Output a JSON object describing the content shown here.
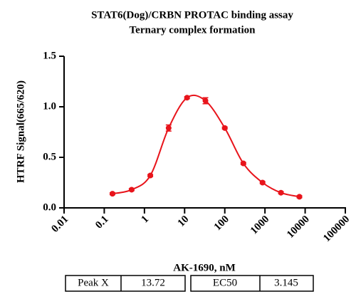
{
  "chart_data": {
    "type": "scatter",
    "title": "STAT6(Dog)/CRBN PROTAC binding assay",
    "subtitle": "Ternary complex formation",
    "x_label": "AK-1690, nM",
    "y_label": "HTRF Signal(665/620)",
    "x_log": true,
    "xlim": [
      0.01,
      100000
    ],
    "xticks": [
      0.01,
      0.1,
      1,
      10,
      100,
      1000,
      10000,
      100000
    ],
    "ylim": [
      0,
      1.5
    ],
    "yticks": [
      {
        "value": 0,
        "label": "0.0"
      },
      {
        "value": 0.5,
        "label": "0.5"
      },
      {
        "value": 1,
        "label": "1.0"
      },
      {
        "value": 1.5,
        "label": "1.5"
      }
    ],
    "series": [
      {
        "color": "#e8141b",
        "x": [
          0.16,
          0.48,
          1.4,
          4,
          11.5,
          33,
          100,
          290,
          870,
          2500,
          7200
        ],
        "values": [
          0.14,
          0.18,
          0.32,
          0.79,
          1.09,
          1.06,
          0.79,
          0.44,
          0.25,
          0.15,
          0.11
        ],
        "errors": [
          0.01,
          0.01,
          0.01,
          0.03,
          0.01,
          0.03,
          0.01,
          0.01,
          0.01,
          0.01,
          0.01
        ]
      }
    ]
  },
  "table": [
    [
      "Peak X",
      "13.72"
    ],
    [
      "EC50",
      "3.145"
    ]
  ]
}
